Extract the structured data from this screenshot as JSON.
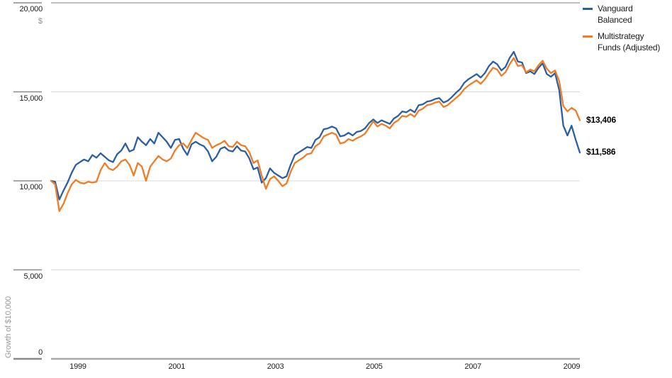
{
  "chart_data": {
    "type": "line",
    "title": "",
    "xlabel": "",
    "ylabel": "Growth of $10,000",
    "currency_symbol": "$",
    "grid": true,
    "legend_position": "top-right",
    "ylim": [
      0,
      20000
    ],
    "y_ticks": [
      {
        "value": 0,
        "label": "0"
      },
      {
        "value": 5000,
        "label": "5,000"
      },
      {
        "value": 10000,
        "label": "10,000"
      },
      {
        "value": 15000,
        "label": "15,000"
      },
      {
        "value": 20000,
        "label": "20,000"
      }
    ],
    "x_ticks": [
      {
        "year": 1999,
        "label": "1999"
      },
      {
        "year": 2001,
        "label": "2001"
      },
      {
        "year": 2003,
        "label": "2003"
      },
      {
        "year": 2005,
        "label": "2005"
      },
      {
        "year": 2007,
        "label": "2007"
      },
      {
        "year": 2009,
        "label": "2009"
      }
    ],
    "x_start": "1998-06",
    "x_end": "2009-02",
    "x_frequency": "monthly",
    "series": [
      {
        "name": "Vanguard Balanced",
        "color": "#2b5fa5",
        "end_label": "$11,586",
        "final_value": 11586,
        "values": [
          10000,
          9950,
          8950,
          9450,
          9900,
          10450,
          10900,
          11050,
          11200,
          11100,
          11450,
          11300,
          11550,
          11350,
          11150,
          11050,
          11500,
          11700,
          12100,
          11650,
          11750,
          12450,
          12200,
          12000,
          12350,
          12100,
          12700,
          12450,
          12200,
          11850,
          12300,
          12350,
          11800,
          11450,
          12050,
          12200,
          12050,
          11950,
          11650,
          11100,
          11350,
          11800,
          11900,
          11700,
          11650,
          11950,
          11700,
          11650,
          11250,
          10650,
          10750,
          9900,
          10150,
          10700,
          10450,
          10300,
          10150,
          10250,
          10900,
          11450,
          11600,
          11750,
          11900,
          11850,
          12300,
          12450,
          12900,
          12950,
          13050,
          12950,
          12500,
          12550,
          12700,
          12550,
          12750,
          12800,
          12950,
          13250,
          13450,
          13250,
          13400,
          13300,
          13200,
          13500,
          13650,
          13900,
          13850,
          14000,
          13850,
          14250,
          14300,
          14450,
          14500,
          14600,
          14650,
          14400,
          14500,
          14700,
          14950,
          15150,
          15500,
          15700,
          15850,
          16000,
          15800,
          16050,
          16450,
          16700,
          16550,
          16200,
          16400,
          16900,
          17250,
          16700,
          16650,
          16050,
          16150,
          16000,
          16350,
          16600,
          16000,
          15850,
          16050,
          15100,
          13100,
          12550,
          13100,
          12300,
          11586
        ]
      },
      {
        "name": "Multistrategy Funds (Adjusted)",
        "color": "#f07c24",
        "end_label": "$13,406",
        "final_value": 13406,
        "values": [
          10000,
          9800,
          8300,
          8700,
          9300,
          9800,
          10050,
          9900,
          9850,
          9950,
          9900,
          9950,
          10600,
          11000,
          10700,
          10600,
          10800,
          11100,
          11200,
          10900,
          10300,
          11000,
          10800,
          10000,
          10800,
          11100,
          11400,
          11200,
          11100,
          11250,
          11700,
          12000,
          12100,
          11850,
          12300,
          12700,
          12550,
          12400,
          12300,
          11850,
          12000,
          12100,
          12250,
          11950,
          11900,
          12200,
          12000,
          11950,
          11600,
          11000,
          11150,
          10300,
          9550,
          10100,
          10250,
          10000,
          9700,
          9850,
          10500,
          11000,
          11150,
          11300,
          11500,
          11550,
          11950,
          12100,
          12500,
          12600,
          12700,
          12600,
          12100,
          12150,
          12350,
          12250,
          12400,
          12500,
          12650,
          13000,
          13350,
          13050,
          13200,
          13100,
          12950,
          13250,
          13400,
          13650,
          13600,
          13750,
          13600,
          13950,
          14050,
          14250,
          14300,
          14400,
          14450,
          14150,
          14250,
          14450,
          14650,
          14850,
          15150,
          15350,
          15500,
          15650,
          15450,
          15700,
          16050,
          16350,
          16250,
          15900,
          16100,
          16550,
          16900,
          16450,
          16500,
          16100,
          16250,
          16150,
          16500,
          16750,
          16300,
          16050,
          16200,
          15600,
          14200,
          13900,
          14100,
          13950,
          13406
        ]
      }
    ],
    "style": {
      "gridline_color": "#d8d8d8",
      "axis_color": "#a8a8a8",
      "tick_stub_color": "#8a8a8a",
      "tick_text_color": "#1d1d1d",
      "muted_text_color": "#9a9a9a"
    }
  }
}
